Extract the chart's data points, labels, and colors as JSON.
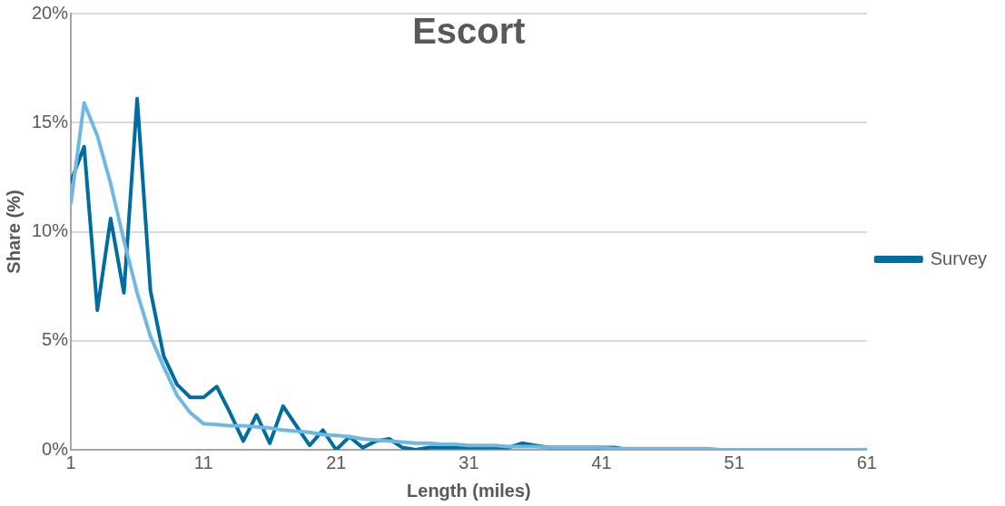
{
  "chart_data": {
    "type": "line",
    "title": "Escort",
    "xlabel": "Length (miles)",
    "ylabel": "Share (%)",
    "x": [
      1,
      2,
      3,
      4,
      5,
      6,
      7,
      8,
      9,
      10,
      11,
      12,
      13,
      14,
      15,
      16,
      17,
      18,
      19,
      20,
      21,
      22,
      23,
      24,
      25,
      26,
      27,
      28,
      29,
      30,
      31,
      32,
      33,
      34,
      35,
      36,
      37,
      38,
      39,
      40,
      41,
      42,
      43,
      44,
      45,
      46,
      47,
      48,
      49,
      50,
      51,
      52,
      53,
      54,
      55,
      56,
      57,
      58,
      59,
      60,
      61
    ],
    "series": [
      {
        "name": "Survey",
        "color": "#006ca0",
        "values": [
          12.3,
          13.9,
          6.4,
          10.6,
          7.2,
          16.1,
          7.3,
          4.3,
          3.0,
          2.4,
          2.4,
          2.9,
          1.7,
          0.4,
          1.6,
          0.3,
          2.0,
          1.1,
          0.2,
          0.9,
          0.0,
          0.6,
          0.1,
          0.4,
          0.5,
          0.1,
          0.0,
          0.1,
          0.1,
          0.1,
          0.1,
          0.1,
          0.1,
          0.1,
          0.3,
          0.2,
          0.1,
          0.1,
          0.1,
          0.1,
          0.1,
          0.1,
          0,
          0,
          0,
          0,
          0,
          0,
          0,
          0,
          0,
          0,
          0,
          0,
          0,
          0,
          0,
          0,
          0,
          0,
          0
        ]
      },
      {
        "color": "#6fb8e4",
        "values": [
          11.3,
          15.9,
          14.4,
          12.2,
          9.6,
          7.2,
          5.2,
          3.8,
          2.5,
          1.7,
          1.2,
          1.15,
          1.1,
          1.1,
          1.05,
          1.0,
          0.9,
          0.85,
          0.8,
          0.7,
          0.65,
          0.6,
          0.5,
          0.45,
          0.4,
          0.35,
          0.3,
          0.3,
          0.25,
          0.25,
          0.2,
          0.2,
          0.2,
          0.15,
          0.15,
          0.15,
          0.1,
          0.1,
          0.1,
          0.1,
          0.1,
          0.05,
          0.05,
          0.05,
          0.05,
          0.05,
          0.05,
          0.05,
          0.05,
          0,
          0,
          0,
          0,
          0,
          0,
          0,
          0,
          0,
          0,
          0,
          0
        ]
      }
    ],
    "xlim": [
      1,
      61
    ],
    "xticks": [
      1,
      11,
      21,
      31,
      41,
      51,
      61
    ],
    "ylim": [
      0,
      20
    ],
    "yticks": [
      {
        "value": 0,
        "label": "0%"
      },
      {
        "value": 5,
        "label": "5%"
      },
      {
        "value": 10,
        "label": "10%"
      },
      {
        "value": 15,
        "label": "15%"
      },
      {
        "value": 20,
        "label": "20%"
      }
    ],
    "grid": "y",
    "legend": "right",
    "marker": "none",
    "line_style": "solid"
  }
}
